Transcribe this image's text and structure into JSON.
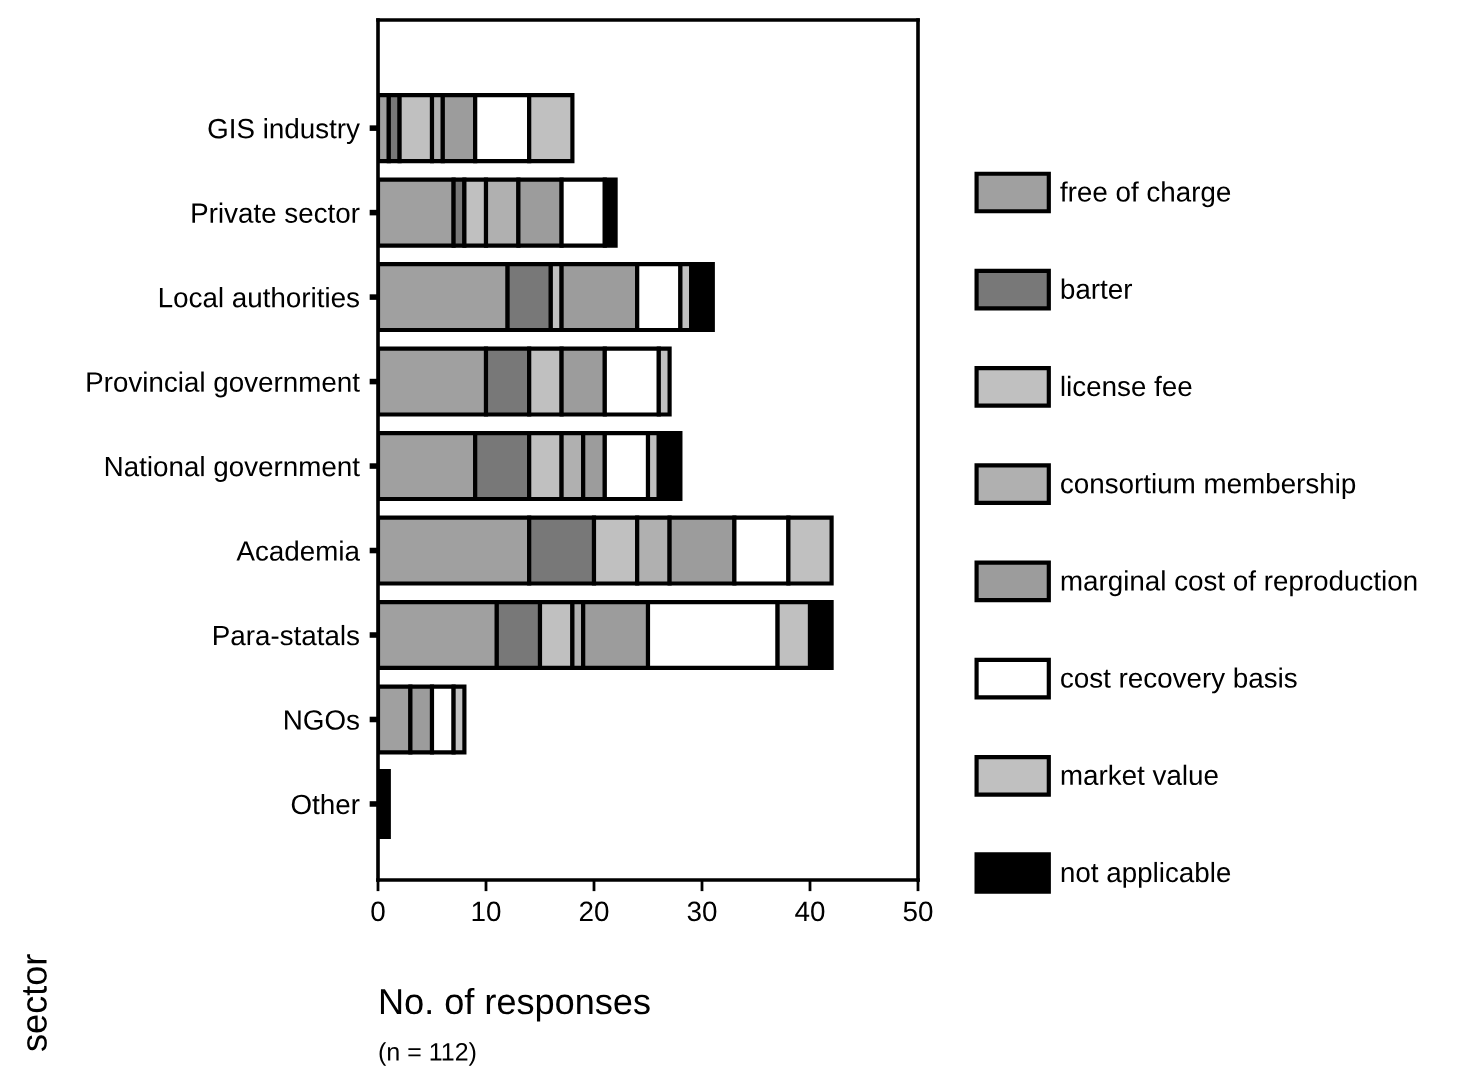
{
  "chart_data": {
    "type": "bar",
    "orientation": "horizontal",
    "stacked": true,
    "categories": [
      "GIS industry",
      "Private sector",
      "Local authorities",
      "Provincial government",
      "National government",
      "Academia",
      "Para-statals",
      "NGOs",
      "Other"
    ],
    "series": [
      {
        "name": "free of charge",
        "color": "#a0a0a0",
        "values": [
          1,
          7,
          12,
          10,
          9,
          14,
          11,
          3,
          0
        ]
      },
      {
        "name": "barter",
        "color": "#787878",
        "values": [
          1,
          1,
          4,
          4,
          5,
          6,
          4,
          0,
          0
        ]
      },
      {
        "name": "license fee",
        "color": "#c0c0c0",
        "values": [
          3,
          2,
          1,
          3,
          3,
          4,
          3,
          0,
          0
        ]
      },
      {
        "name": "consortium membership",
        "color": "#b0b0b0",
        "values": [
          1,
          3,
          0,
          0,
          2,
          3,
          1,
          0,
          0
        ]
      },
      {
        "name": "marginal cost of reproduction",
        "color": "#9c9c9c",
        "values": [
          3,
          4,
          7,
          4,
          2,
          6,
          6,
          2,
          0
        ]
      },
      {
        "name": "cost recovery basis",
        "color": "#ffffff",
        "values": [
          5,
          4,
          4,
          5,
          4,
          5,
          12,
          2,
          0
        ]
      },
      {
        "name": "market value",
        "color": "#c0c0c0",
        "values": [
          4,
          0,
          1,
          1,
          1,
          4,
          3,
          1,
          0
        ]
      },
      {
        "name": "not applicable",
        "color": "#000000",
        "values": [
          0,
          1,
          2,
          0,
          2,
          0,
          2,
          0,
          1
        ]
      }
    ],
    "xlim": [
      0,
      50
    ],
    "xticks": [
      0,
      10,
      20,
      30,
      40,
      50
    ],
    "xlabel": "No. of responses",
    "ylabel": "sector",
    "annotations": [
      "(n = 112)"
    ],
    "legend": "right",
    "grid": false
  }
}
